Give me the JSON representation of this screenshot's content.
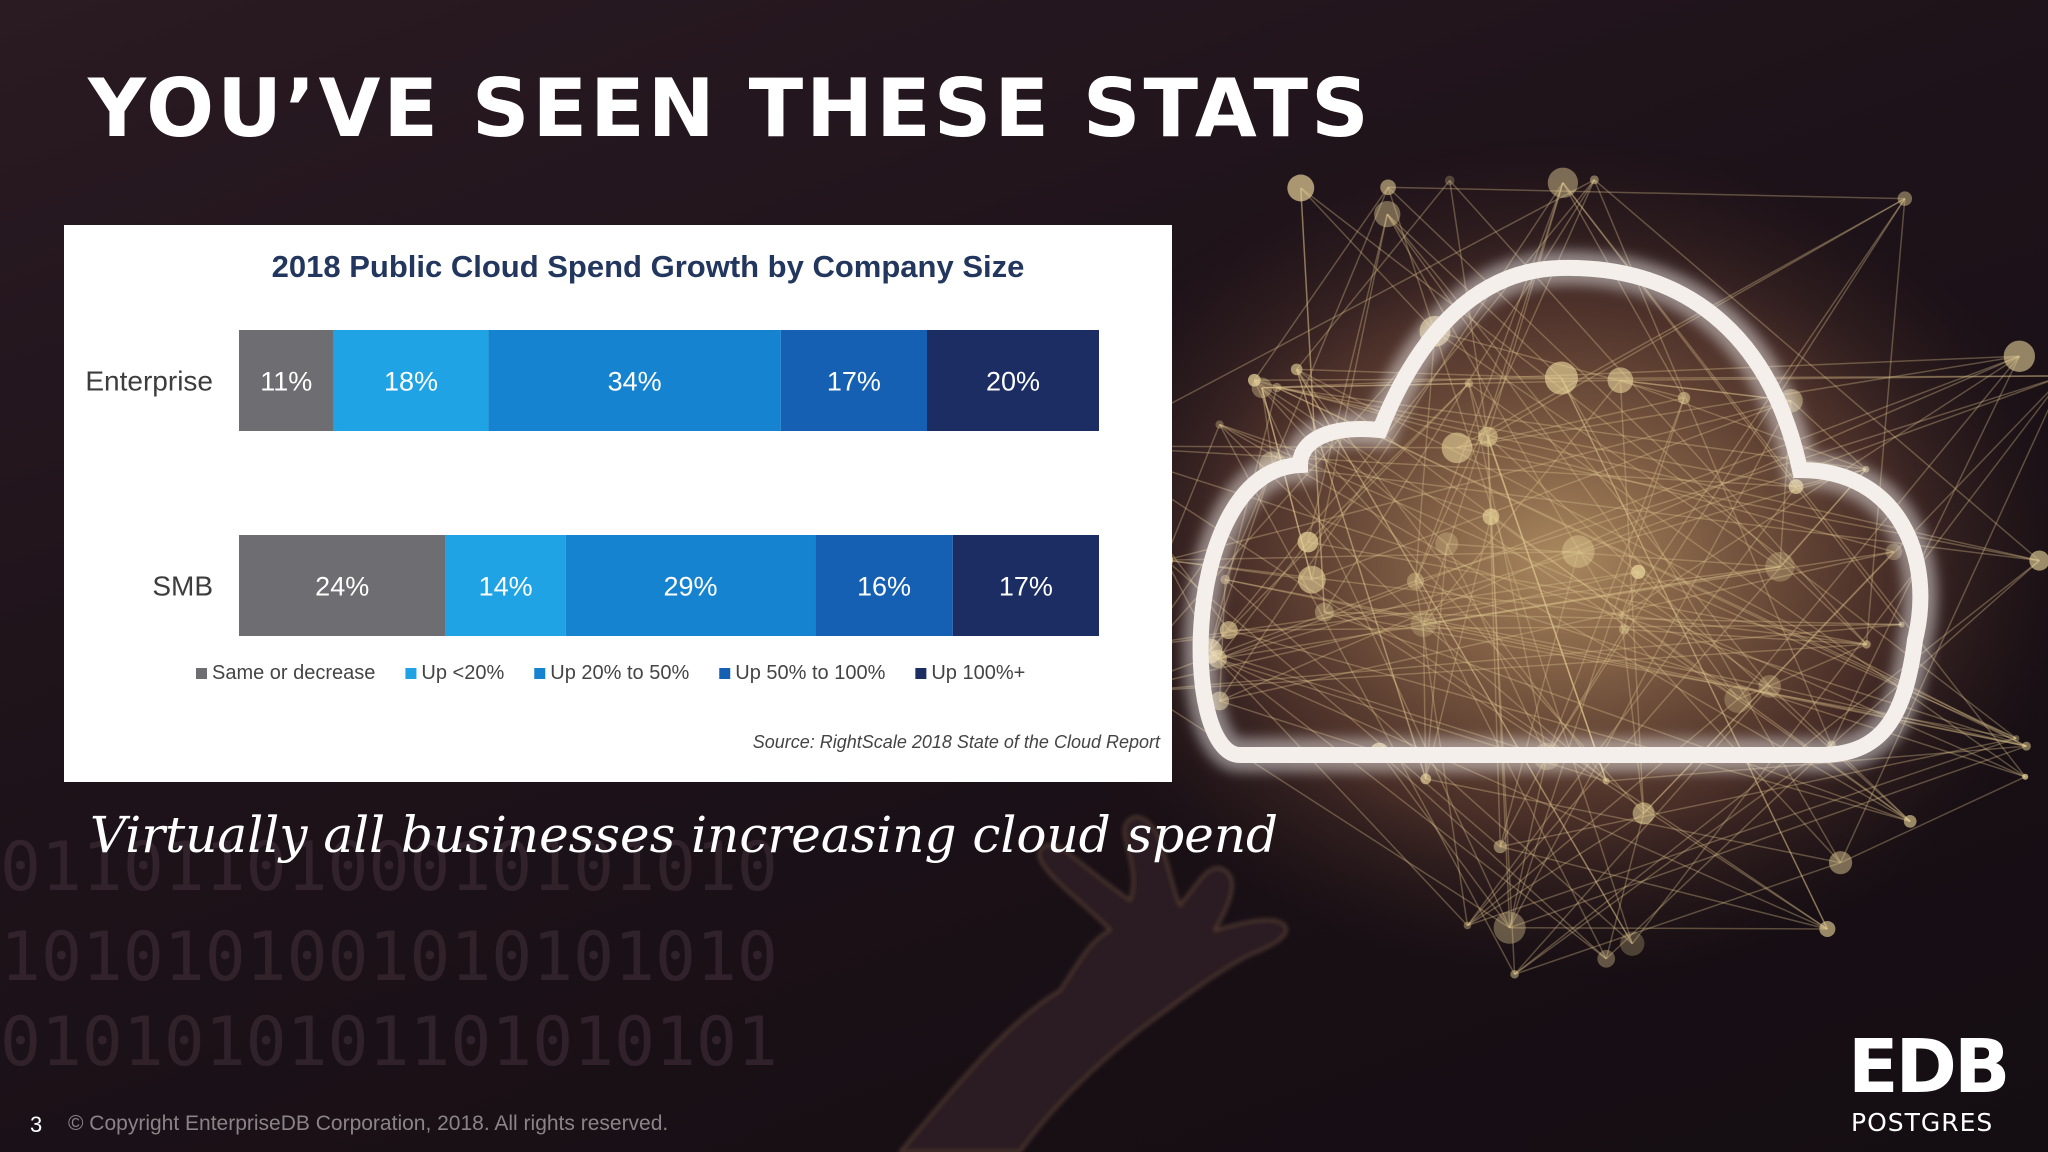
{
  "slide": {
    "title": "YOU’VE SEEN THESE STATS",
    "subtitle": "Virtually all businesses increasing cloud spend",
    "page_number": "3",
    "copyright": "© Copyright EnterpriseDB Corporation, 2018. All rights reserved.",
    "logo": {
      "main": "EDB",
      "sub": "POSTGRES"
    }
  },
  "chart_data": {
    "type": "bar",
    "orientation": "horizontal",
    "stacked": true,
    "title": "2018 Public Cloud Spend Growth by Company Size",
    "categories": [
      "Enterprise",
      "SMB"
    ],
    "series": [
      {
        "name": "Same or decrease",
        "values": [
          11,
          24
        ],
        "labels": [
          "11%",
          "24%"
        ],
        "color": "#6e6d72"
      },
      {
        "name": "Up <20%",
        "values": [
          18,
          14
        ],
        "labels": [
          "18%",
          "14%"
        ],
        "color": "#1fa3e4"
      },
      {
        "name": "Up 20% to 50%",
        "values": [
          34,
          29
        ],
        "labels": [
          "34%",
          "29%"
        ],
        "color": "#1583cf"
      },
      {
        "name": "Up 50% to 100%",
        "values": [
          17,
          16
        ],
        "labels": [
          "17%",
          "16%"
        ],
        "color": "#1660b4"
      },
      {
        "name": "Up 100%+",
        "values": [
          20,
          17
        ],
        "labels": [
          "20%",
          "17%"
        ],
        "color": "#1b2d63"
      }
    ],
    "source": "Source: RightScale 2018 State of the Cloud Report",
    "legend_position": "bottom",
    "grid": false
  }
}
